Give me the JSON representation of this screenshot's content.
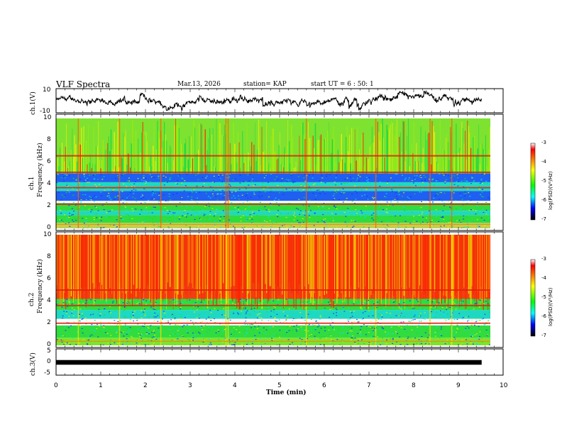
{
  "header": {
    "title": "VLF Spectra",
    "date": "Mar.13, 2026",
    "station": "station= KAP",
    "start": "start UT =  6 : 50: 1"
  },
  "chart_data": [
    {
      "type": "line",
      "panel": "ch1-waveform",
      "ylabel": "ch.1(V)",
      "ylim": [
        -10,
        10
      ],
      "yticks": [
        "10",
        "-10"
      ],
      "xlim": [
        0,
        10
      ],
      "xmax_data": 9.8,
      "description_series": "noisy voltage trace around 0 V, amplitude ~ +/-5 V"
    },
    {
      "type": "heatmap",
      "panel": "ch1-spectrogram",
      "ylabel": "Frequency (kHz)",
      "ylabel2": "ch.1",
      "ylim": [
        0,
        10
      ],
      "yticks": [
        "0",
        "2",
        "4",
        "6",
        "8",
        "10"
      ],
      "xlim": [
        0,
        10
      ],
      "bands": [
        {
          "from": 0,
          "to": 0.5,
          "level": "mixed"
        },
        {
          "from": 0.5,
          "to": 1.2,
          "level": "green"
        },
        {
          "from": 1.2,
          "to": 1.6,
          "level": "cyan"
        },
        {
          "from": 1.6,
          "to": 2.3,
          "level": "green"
        },
        {
          "from": 2.5,
          "to": 3.4,
          "level": "blue"
        },
        {
          "from": 3.4,
          "to": 4.2,
          "level": "cyan"
        },
        {
          "from": 4.2,
          "to": 5.0,
          "level": "blue"
        },
        {
          "from": 5.0,
          "to": 10.0,
          "level": "green-yellow"
        }
      ],
      "lines_khz": [
        2.2,
        3.7,
        5.1,
        6.6
      ]
    },
    {
      "type": "heatmap",
      "panel": "ch2-spectrogram",
      "ylabel": "Frequency (kHz)",
      "ylabel2": "ch.2",
      "ylim": [
        0,
        10
      ],
      "yticks": [
        "0",
        "2",
        "4",
        "6",
        "8",
        "10"
      ],
      "xlim": [
        0,
        10
      ],
      "bands": [
        {
          "from": 0,
          "to": 0.7,
          "level": "green-yellow"
        },
        {
          "from": 0.7,
          "to": 1.8,
          "level": "green"
        },
        {
          "from": 2.4,
          "to": 3.2,
          "level": "cyan"
        },
        {
          "from": 3.2,
          "to": 4.2,
          "level": "green"
        },
        {
          "from": 4.2,
          "to": 10.0,
          "level": "red"
        }
      ],
      "lines_khz": [
        2.0,
        3.6,
        5.0
      ]
    },
    {
      "type": "line",
      "panel": "ch3-waveform",
      "ylabel": "ch.3(V)",
      "ylim": [
        -5,
        5
      ],
      "yticks": [
        "5",
        "0",
        "-5"
      ],
      "xlim": [
        0,
        10
      ],
      "xlabel": "Time (min)",
      "xticks": [
        "0",
        "1",
        "2",
        "3",
        "4",
        "5",
        "6",
        "7",
        "8",
        "9",
        "10"
      ],
      "value_band": [
        -0.5,
        0.5
      ]
    }
  ],
  "colorbar": {
    "label": "log(PSD)(V²/Hz)",
    "ticks": [
      "-3",
      "-4",
      "-5",
      "-6",
      "-7"
    ],
    "range": [
      -7,
      -3
    ],
    "colors": [
      "#ff0000",
      "#ffff00",
      "#00ff00",
      "#00ffff",
      "#0000ff",
      "#000000"
    ]
  }
}
